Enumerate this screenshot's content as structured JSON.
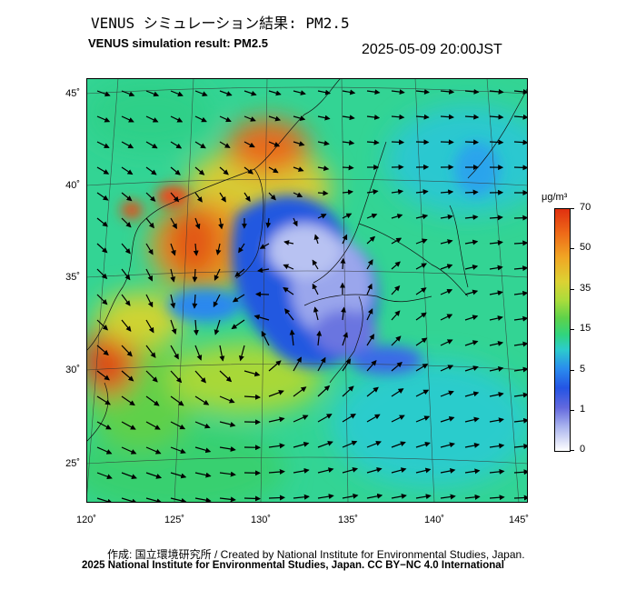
{
  "title_ja": "VENUS シミュレーション結果: PM2.5",
  "title_en": "VENUS simulation result: PM2.5",
  "timestamp": "2025-05-09 20:00JST",
  "map": {
    "lat_labels": [
      "45˚",
      "40˚",
      "35˚",
      "30˚",
      "25˚"
    ],
    "lon_labels": [
      "120˚",
      "125˚",
      "130˚",
      "135˚",
      "140˚",
      "145˚"
    ],
    "lat_range": [
      23,
      46
    ],
    "lon_range": [
      120,
      145
    ]
  },
  "colorbar": {
    "unit": "μg/m³",
    "ticks": [
      "70",
      "50",
      "35",
      "15",
      "5",
      "1",
      "0"
    ],
    "colors": [
      "#e03010",
      "#ee6a18",
      "#f0a624",
      "#dcd233",
      "#5ed24a",
      "#30d47e",
      "#2ccccc",
      "#2a8cee",
      "#2454e4",
      "#aab4ee",
      "#ffffff"
    ]
  },
  "credits": {
    "line1": "作成: 国立環境研究所 / Created by National Institute for Environmental Studies, Japan.",
    "line2": "2025 National Institute for Environmental Studies, Japan. CC BY−NC 4.0 International"
  }
}
